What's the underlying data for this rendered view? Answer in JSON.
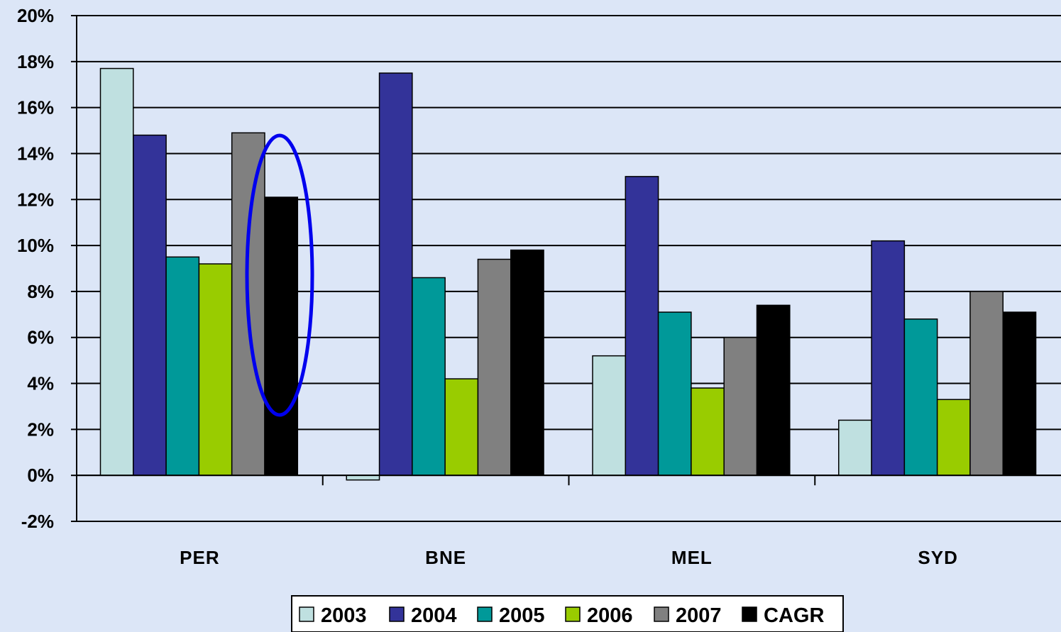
{
  "chart_data": {
    "type": "bar",
    "categories": [
      "PER",
      "BNE",
      "MEL",
      "SYD"
    ],
    "series": [
      {
        "name": "2003",
        "color": "#bfe0e0",
        "values": [
          17.7,
          -0.2,
          5.2,
          2.4
        ]
      },
      {
        "name": "2004",
        "color": "#333399",
        "values": [
          14.8,
          17.5,
          13.0,
          10.2
        ]
      },
      {
        "name": "2005",
        "color": "#009999",
        "values": [
          9.5,
          8.6,
          7.1,
          6.8
        ]
      },
      {
        "name": "2006",
        "color": "#99cc00",
        "values": [
          9.2,
          4.2,
          3.8,
          3.3
        ]
      },
      {
        "name": "2007",
        "color": "#808080",
        "values": [
          14.9,
          9.4,
          6.0,
          8.0
        ]
      },
      {
        "name": "CAGR",
        "color": "#000000",
        "values": [
          12.1,
          9.8,
          7.4,
          7.1
        ]
      }
    ],
    "ylim": [
      -2,
      20
    ],
    "yticks": [
      "20%",
      "18%",
      "16%",
      "14%",
      "12%",
      "10%",
      "8%",
      "6%",
      "4%",
      "2%",
      "0%",
      "-2%"
    ],
    "grid": true,
    "legend_position": "bottom",
    "annotation": {
      "shape": "ellipse",
      "color": "#0000ee",
      "highlights": "PER CAGR"
    }
  }
}
